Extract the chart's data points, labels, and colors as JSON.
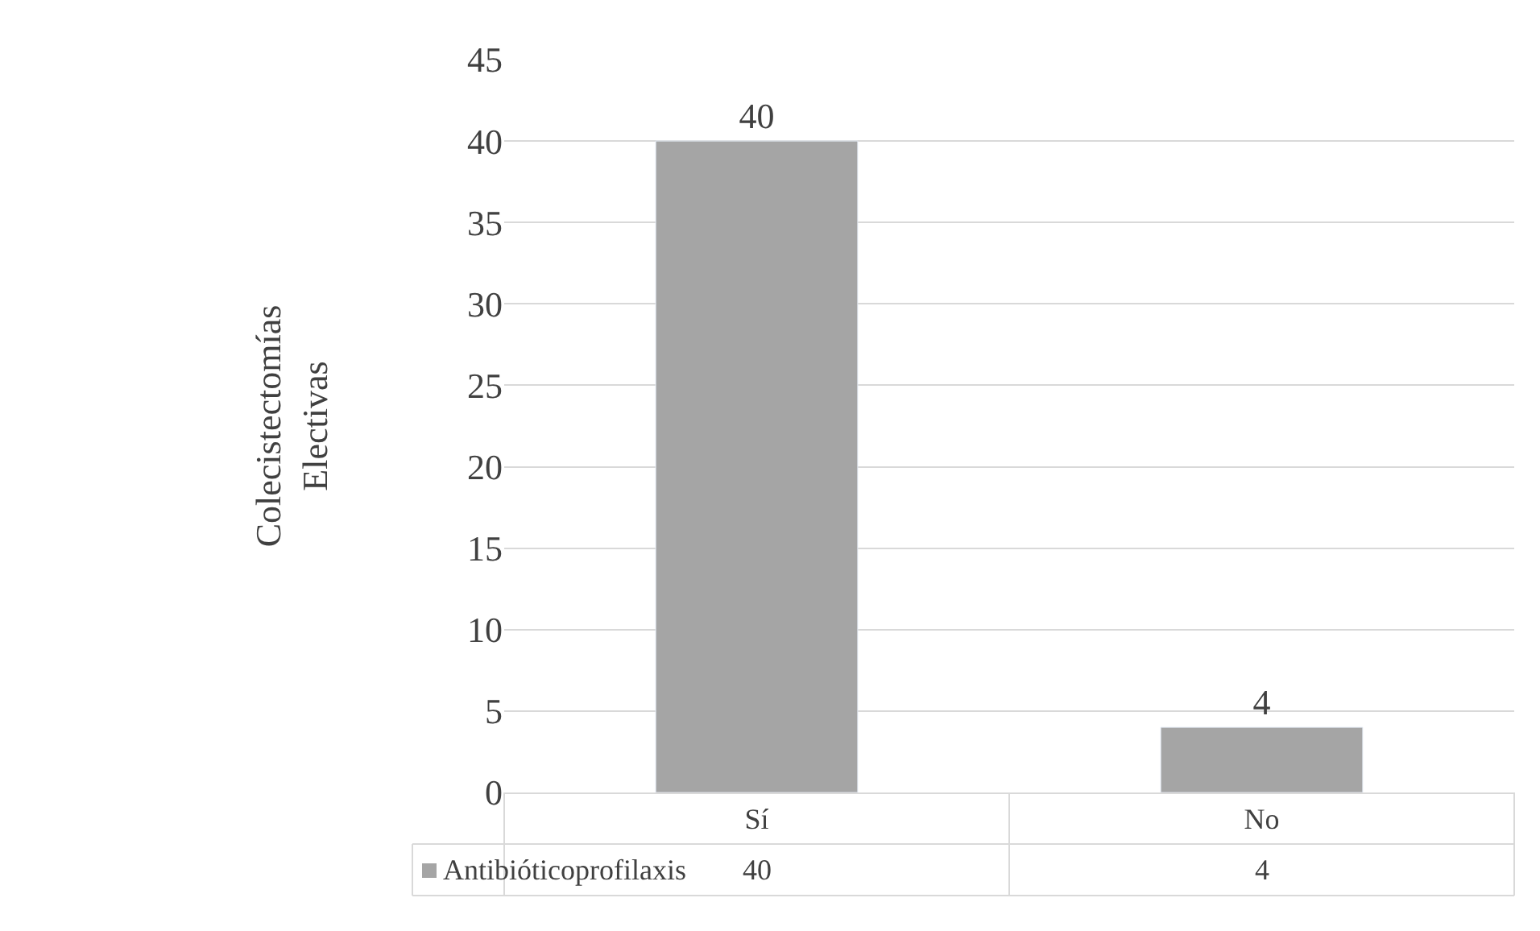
{
  "chart_data": {
    "type": "bar",
    "ylabel": "Colecistectomías Electivas",
    "categories": [
      "Sí",
      "No"
    ],
    "series": [
      {
        "name": "Antibióticoprofilaxis",
        "color": "#a5a5a5",
        "values": [
          40,
          4
        ],
        "value_labels": [
          "40",
          "4"
        ]
      }
    ],
    "ylim": [
      0,
      45
    ],
    "yticks": [
      0,
      5,
      10,
      15,
      20,
      25,
      30,
      35,
      40,
      45
    ],
    "grid": "y",
    "data_labels": true,
    "legend": "bottom left"
  }
}
